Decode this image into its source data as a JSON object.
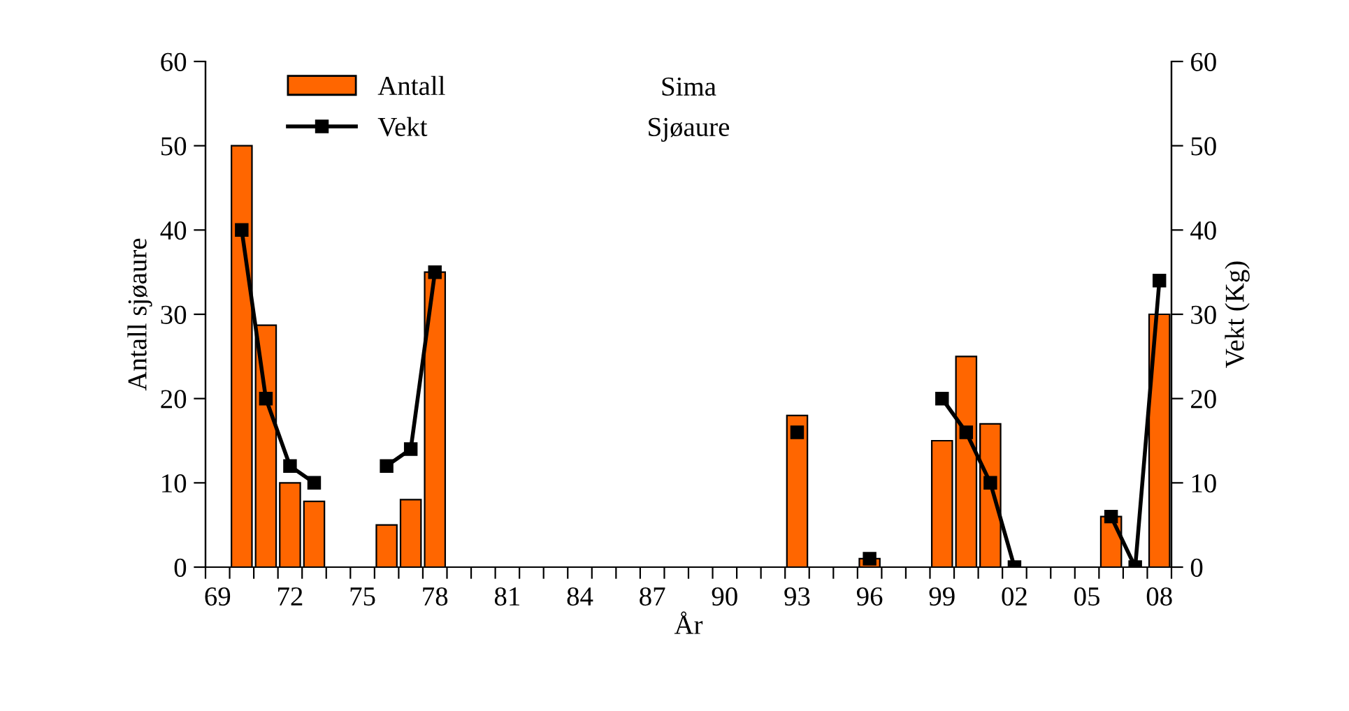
{
  "chart_data": {
    "type": "bar",
    "title": "Sima",
    "subtitle": "Sjøaure",
    "xlabel": "År",
    "ylabel": "Antall sjøaure",
    "y2label": "Vekt (Kg)",
    "categories": [
      "69",
      null,
      null,
      "72",
      null,
      null,
      "75",
      null,
      null,
      "78",
      null,
      null,
      "81",
      null,
      null,
      "84",
      null,
      null,
      "87",
      null,
      null,
      "90",
      null,
      null,
      "93",
      null,
      null,
      "96",
      null,
      null,
      "99",
      null,
      null,
      "02",
      null,
      null,
      "05",
      null,
      null,
      "08"
    ],
    "series": [
      {
        "name": "Antall",
        "color": "#ff6600",
        "values": [
          null,
          50,
          28.7,
          10,
          7.8,
          null,
          null,
          5,
          8,
          35,
          null,
          null,
          null,
          null,
          null,
          null,
          null,
          null,
          null,
          null,
          null,
          null,
          null,
          null,
          18,
          null,
          null,
          1,
          null,
          null,
          15,
          25,
          17,
          null,
          null,
          null,
          null,
          6,
          null,
          30
        ]
      },
      {
        "name": "Vekt",
        "type": "line",
        "axis": "y2",
        "color": "#000000",
        "marker": "square",
        "values": [
          null,
          40,
          20,
          12,
          10,
          null,
          null,
          12,
          14,
          35,
          null,
          null,
          null,
          null,
          null,
          null,
          null,
          null,
          null,
          null,
          null,
          null,
          null,
          null,
          16,
          null,
          null,
          1,
          null,
          null,
          20,
          16,
          10,
          0,
          null,
          null,
          null,
          6,
          0,
          34
        ]
      }
    ],
    "ylim": [
      0,
      60
    ],
    "yticks": [
      0,
      10,
      20,
      30,
      40,
      50,
      60
    ],
    "y2lim": [
      0,
      60
    ],
    "y2ticks": [
      0,
      10,
      20,
      30,
      40,
      50,
      60
    ],
    "grid": false,
    "legend": "top left"
  }
}
